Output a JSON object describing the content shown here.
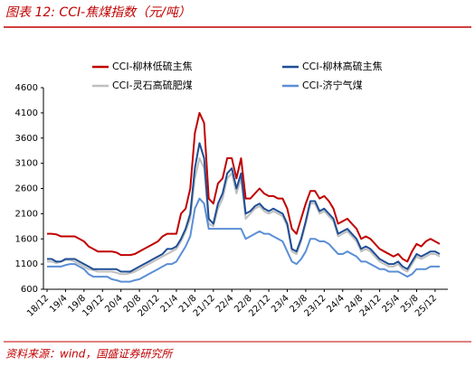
{
  "chart_data": {
    "type": "line",
    "title": "图表 12:  CCI-焦煤指数（元/吨）",
    "source": "资料来源：wind，国盛证券研究所",
    "categories": [
      "18/12",
      null,
      null,
      null,
      "19/4",
      null,
      null,
      null,
      "19/8",
      null,
      null,
      null,
      "19/12",
      null,
      null,
      null,
      "20/4",
      null,
      null,
      null,
      "20/8",
      null,
      null,
      null,
      "20/12",
      null,
      null,
      null,
      "21/4",
      null,
      null,
      null,
      "21/8",
      null,
      null,
      null,
      "21/12",
      null,
      null,
      null,
      "22/4",
      null,
      null,
      null,
      "22/8",
      null,
      null,
      null,
      "22/12",
      null,
      null,
      null,
      "23/4",
      null,
      null,
      null,
      "23/8",
      null,
      null,
      null,
      "23/12",
      null,
      null,
      null,
      "24/4",
      null,
      null,
      null,
      "24/8",
      null,
      null,
      null,
      "24/12",
      null,
      null,
      null,
      "25/4",
      null,
      null,
      null,
      "25/8",
      null,
      null,
      null,
      "25/12",
      null
    ],
    "series": [
      {
        "name": "CCI-柳林低硫主焦",
        "color": "#c00000",
        "values": [
          1700,
          1700,
          1690,
          1650,
          1650,
          1650,
          1650,
          1600,
          1550,
          1450,
          1400,
          1350,
          1350,
          1350,
          1350,
          1330,
          1280,
          1280,
          1280,
          1300,
          1350,
          1400,
          1450,
          1500,
          1550,
          1650,
          1700,
          1700,
          1700,
          2100,
          2200,
          2600,
          3700,
          4100,
          3900,
          2400,
          2300,
          2700,
          2800,
          3200,
          3200,
          2800,
          3200,
          2400,
          2400,
          2500,
          2600,
          2500,
          2450,
          2450,
          2400,
          2400,
          2200,
          1800,
          1700,
          2000,
          2300,
          2550,
          2550,
          2400,
          2450,
          2350,
          2200,
          1900,
          1950,
          2000,
          1900,
          1800,
          1600,
          1650,
          1600,
          1500,
          1400,
          1350,
          1300,
          1250,
          1300,
          1200,
          1150,
          1350,
          1500,
          1450,
          1550,
          1600,
          1550,
          1500
        ]
      },
      {
        "name": "CCI-柳林高硫主焦",
        "color": "#1f4e96",
        "values": [
          1200,
          1200,
          1150,
          1150,
          1200,
          1200,
          1200,
          1150,
          1100,
          1050,
          1000,
          1000,
          1000,
          1000,
          1000,
          1000,
          950,
          950,
          950,
          1000,
          1050,
          1100,
          1150,
          1200,
          1250,
          1300,
          1400,
          1400,
          1450,
          1600,
          1800,
          2100,
          3000,
          3500,
          3200,
          2000,
          1900,
          2300,
          2500,
          2900,
          3000,
          2600,
          2900,
          2100,
          2150,
          2250,
          2300,
          2200,
          2150,
          2200,
          2150,
          2100,
          1900,
          1400,
          1350,
          1600,
          1950,
          2350,
          2350,
          2150,
          2200,
          2100,
          2000,
          1700,
          1750,
          1800,
          1700,
          1600,
          1400,
          1450,
          1400,
          1300,
          1200,
          1150,
          1100,
          1100,
          1150,
          1050,
          1000,
          1150,
          1300,
          1250,
          1300,
          1350,
          1350,
          1300
        ]
      },
      {
        "name": "CCI-灵石高硫肥煤",
        "color": "#bfbfbf",
        "values": [
          1150,
          1150,
          1120,
          1150,
          1180,
          1180,
          1150,
          1100,
          1050,
          1000,
          980,
          950,
          950,
          950,
          950,
          930,
          900,
          900,
          920,
          950,
          1000,
          1050,
          1100,
          1150,
          1200,
          1250,
          1300,
          1350,
          1400,
          1550,
          1750,
          2000,
          2800,
          3200,
          3000,
          1900,
          1850,
          2200,
          2400,
          2800,
          2900,
          2500,
          2800,
          2000,
          2100,
          2200,
          2250,
          2150,
          2100,
          2150,
          2100,
          2050,
          1850,
          1350,
          1300,
          1550,
          1900,
          2300,
          2300,
          2100,
          2150,
          2050,
          1950,
          1650,
          1700,
          1750,
          1650,
          1550,
          1350,
          1400,
          1350,
          1250,
          1150,
          1100,
          1050,
          1050,
          1100,
          1000,
          950,
          1100,
          1250,
          1200,
          1250,
          1300,
          1300,
          1250
        ]
      },
      {
        "name": "CCI-济宁气煤",
        "color": "#5b8fd6",
        "values": [
          1050,
          1050,
          1050,
          1050,
          1080,
          1100,
          1100,
          1050,
          1000,
          900,
          850,
          850,
          850,
          850,
          800,
          780,
          750,
          750,
          750,
          780,
          800,
          850,
          900,
          950,
          1000,
          1050,
          1100,
          1100,
          1150,
          1300,
          1450,
          1650,
          2200,
          2400,
          2300,
          1800,
          1800,
          1800,
          1800,
          1800,
          1800,
          1800,
          1800,
          1600,
          1650,
          1700,
          1750,
          1700,
          1700,
          1650,
          1600,
          1550,
          1350,
          1150,
          1100,
          1200,
          1350,
          1600,
          1600,
          1550,
          1550,
          1500,
          1400,
          1300,
          1300,
          1350,
          1300,
          1250,
          1150,
          1150,
          1100,
          1050,
          1000,
          1000,
          950,
          950,
          950,
          900,
          850,
          900,
          1000,
          1000,
          1000,
          1050,
          1050,
          1050
        ]
      }
    ],
    "ylim": [
      600,
      4600
    ],
    "yticks": [
      600,
      1100,
      1600,
      2100,
      2600,
      3100,
      3600,
      4100,
      4600
    ],
    "grid": false
  }
}
